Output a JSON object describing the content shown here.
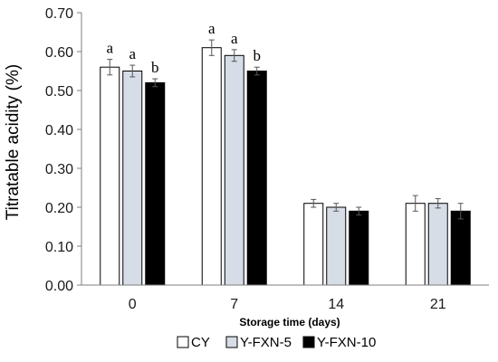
{
  "chart_data": {
    "type": "bar",
    "title": "",
    "xlabel": "Storage time (days)",
    "ylabel": "Titratable acidity (%)",
    "ylim": [
      0,
      0.7
    ],
    "yticks": [
      "0.00",
      "0.10",
      "0.20",
      "0.30",
      "0.40",
      "0.50",
      "0.60",
      "0.70"
    ],
    "categories": [
      "0",
      "7",
      "14",
      "21"
    ],
    "grid": false,
    "legend_position": "bottom",
    "series": [
      {
        "name": "CY",
        "color": "#ffffff",
        "values": [
          0.56,
          0.61,
          0.21,
          0.21
        ],
        "errors": [
          0.02,
          0.02,
          0.01,
          0.02
        ],
        "labels": [
          "a",
          "a",
          "",
          ""
        ]
      },
      {
        "name": "Y-FXN-5",
        "color": "#d6dde6",
        "values": [
          0.55,
          0.59,
          0.2,
          0.21
        ],
        "errors": [
          0.015,
          0.015,
          0.01,
          0.012
        ],
        "labels": [
          "a",
          "a",
          "",
          ""
        ]
      },
      {
        "name": "Y-FXN-10",
        "color": "#000000",
        "values": [
          0.52,
          0.55,
          0.19,
          0.19
        ],
        "errors": [
          0.01,
          0.01,
          0.01,
          0.02
        ],
        "labels": [
          "b",
          "b",
          "",
          ""
        ]
      }
    ]
  }
}
